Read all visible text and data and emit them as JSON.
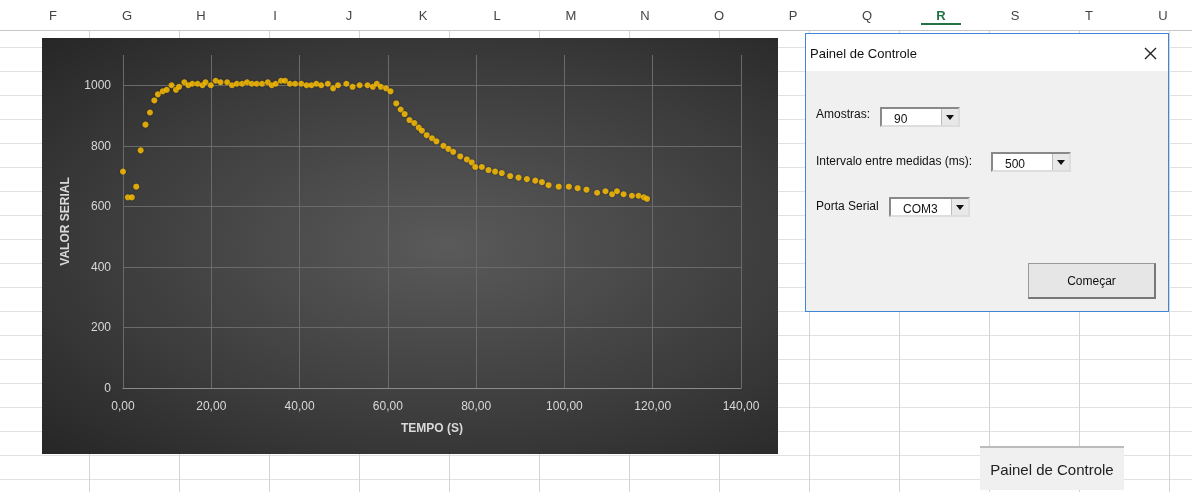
{
  "chart_data": [
    {
      "type": "other",
      "annotations": [
        "F",
        "G",
        "H",
        "I",
        "J",
        "K",
        "L",
        "M",
        "N",
        "O",
        "P",
        "Q",
        "R",
        "S",
        "T",
        "U",
        "Painel de Controle"
      ]
    },
    {
      "type": "scatter",
      "xlabel": "TEMPO (S)",
      "ylabel": "VALOR SERIAL",
      "color": "#ffc000",
      "marker": "circle",
      "grid": true,
      "xlim": [
        0,
        140
      ],
      "xticks": [
        {
          "value": 0,
          "label": "0,00"
        },
        {
          "value": 20,
          "label": "20,00"
        },
        {
          "value": 40,
          "label": "40,00"
        },
        {
          "value": 60,
          "label": "60,00"
        },
        {
          "value": 80,
          "label": "80,00"
        },
        {
          "value": 100,
          "label": "100,00"
        },
        {
          "value": 120,
          "label": "120,00"
        },
        {
          "value": 140,
          "label": "140,00"
        }
      ],
      "ylim": [
        0,
        1100
      ],
      "yticks": [
        0,
        200,
        400,
        600,
        800,
        1000
      ],
      "x": [
        0,
        1.1,
        2,
        3,
        4,
        5.1,
        6.1,
        7.1,
        7.9,
        9,
        9.9,
        11,
        12,
        12.7,
        13.9,
        14.8,
        15.7,
        16.9,
        18,
        18.7,
        19.9,
        21,
        22.1,
        23.6,
        24.7,
        25.8,
        27,
        28.1,
        29.2,
        30.3,
        31.5,
        32.8,
        33.7,
        34.6,
        35.8,
        36.7,
        37.8,
        39,
        40.4,
        41.6,
        42.7,
        43.8,
        44.9,
        46.4,
        47.6,
        48.7,
        50.6,
        52,
        53.6,
        55.4,
        56.6,
        57.5,
        58.4,
        59.6,
        60.6,
        61.9,
        62.9,
        63.8,
        64.9,
        66,
        67,
        67.7,
        68.8,
        70,
        71,
        72.6,
        73.7,
        74.8,
        76.4,
        77.9,
        79,
        79.8,
        81.3,
        82.8,
        84.3,
        85.8,
        87.7,
        89.6,
        91.5,
        93.4,
        94.9,
        96.4,
        98.7,
        101,
        103,
        105,
        107.4,
        109.3,
        110.8,
        111.9,
        113.4,
        115.3,
        116.8,
        118,
        118.7
      ],
      "values": [
        715,
        630,
        630,
        665,
        785,
        870,
        910,
        950,
        970,
        980,
        985,
        1000,
        985,
        995,
        1010,
        1000,
        1005,
        1005,
        1000,
        1010,
        1000,
        1015,
        1010,
        1010,
        1000,
        1005,
        1005,
        1010,
        1005,
        1005,
        1005,
        1010,
        1000,
        1005,
        1015,
        1015,
        1005,
        1005,
        1005,
        1000,
        1000,
        1005,
        1000,
        1005,
        990,
        1000,
        1005,
        995,
        1000,
        1000,
        995,
        1005,
        995,
        990,
        980,
        940,
        920,
        905,
        885,
        875,
        860,
        850,
        835,
        825,
        815,
        800,
        790,
        780,
        765,
        755,
        745,
        730,
        730,
        720,
        715,
        710,
        700,
        695,
        690,
        685,
        680,
        670,
        665,
        665,
        660,
        655,
        645,
        650,
        640,
        650,
        640,
        635,
        635,
        630,
        625
      ]
    },
    {
      "type": "other",
      "title": "Painel de Controle",
      "annotations": [
        "Amostras:",
        "90",
        "Intervalo entre medidas (ms):",
        "500",
        "Porta Serial",
        "COM3",
        "Começar"
      ]
    }
  ]
}
